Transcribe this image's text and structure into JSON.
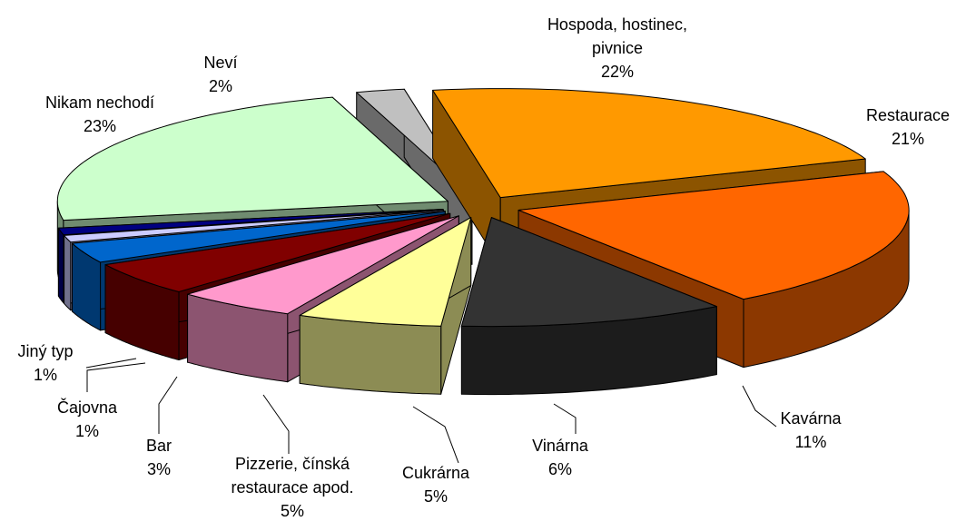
{
  "chart_data": {
    "type": "pie3d",
    "categories": [
      "Hospoda, hostinec, pivnice",
      "Restaurace",
      "Kavárna",
      "Vinárna",
      "Cukrárna",
      "Pizzerie, čínská restaurace apod.",
      "Bar",
      "Čajovna",
      "Jiný typ",
      "Nikam nechodí",
      "Neví"
    ],
    "values": [
      22,
      21,
      11,
      6,
      5,
      5,
      3,
      1,
      1,
      23,
      2
    ],
    "value_labels": [
      "22%",
      "21%",
      "11%",
      "6%",
      "5%",
      "5%",
      "3%",
      "1%",
      "1%",
      "23%",
      "2%"
    ],
    "colors": [
      "#FF9900",
      "#FF6600",
      "#333333",
      "#FFFF99",
      "#FF99CC",
      "#800000",
      "#0066CC",
      "#CCCCFF",
      "#000080",
      "#CCFFCC",
      "#C0C0C0"
    ]
  }
}
